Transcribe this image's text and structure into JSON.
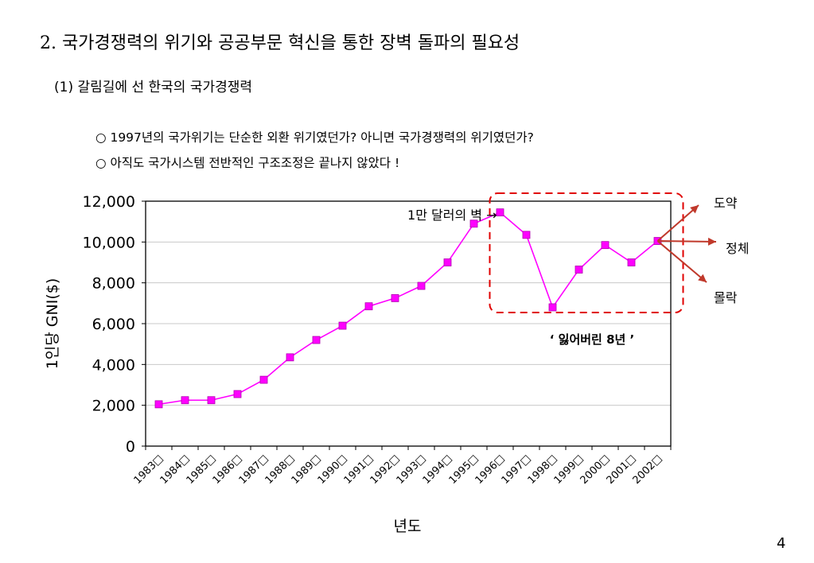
{
  "slide": {
    "title": "2. 국가경쟁력의 위기와 공공부문 혁신을 통한 장벽 돌파의 필요성",
    "subtitle": "(1) 갈림길에 선 한국의 국가경쟁력",
    "bullets": [
      "○ 1997년의 국가위기는 단순한 외환 위기였던가? 아니면 국가경쟁력의 위기였던가?",
      "○ 아직도 국가시스템 전반적인 구조조정은 끝나지 않았다 !"
    ],
    "page_number": "4"
  },
  "chart_data": {
    "type": "line",
    "categories": [
      "1983□",
      "1984□",
      "1985□",
      "1986□",
      "1987□",
      "1988□",
      "1989□",
      "1990□",
      "1991□",
      "1992□",
      "1993□",
      "1994□",
      "1995□",
      "1996□",
      "1997□",
      "1998□",
      "1999□",
      "2000□",
      "2001□",
      "2002□"
    ],
    "series": [
      {
        "values": [
          2050,
          2250,
          2250,
          2550,
          3250,
          4350,
          5200,
          5900,
          6850,
          7250,
          7850,
          9000,
          10900,
          11450,
          10350,
          6800,
          8650,
          9850,
          9000,
          10050
        ]
      }
    ],
    "yticks": [
      "0",
      "2,000",
      "4,000",
      "6,000",
      "8,000",
      "10,000",
      "12,000"
    ],
    "ylim": [
      0,
      12000
    ],
    "xlabel": "년도",
    "ylabel": "1인당 GNI($)",
    "grid": "horizontal",
    "line_color": "#ff00ff",
    "marker_color": "#ff00ff",
    "annotations": {
      "wall": "1만 달러의 벽 →",
      "lost_years": "‘ 잃어버린 8년 ’",
      "outcomes": [
        "도약",
        "정체",
        "몰락"
      ]
    },
    "highlight_color": "#e00000",
    "arrow_color": "#c0392b"
  }
}
